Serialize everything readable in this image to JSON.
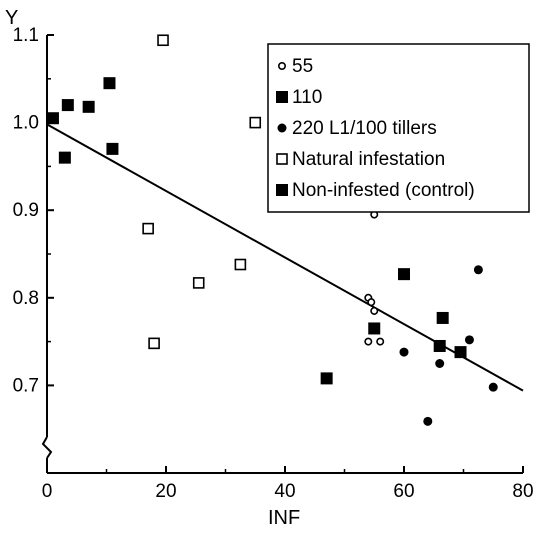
{
  "chart_data": {
    "type": "scatter",
    "xlabel": "INF",
    "ylabel": "Y",
    "xlim": [
      0,
      80
    ],
    "ylim": [
      0.6,
      1.1
    ],
    "xticks": [
      "0",
      "20",
      "40",
      "60",
      "80"
    ],
    "yticks": [
      "0.7",
      "0.8",
      "0.9",
      "1.0",
      "1.1"
    ],
    "grid": false,
    "legend_position": "top-right",
    "legend": [
      {
        "label": "55",
        "marker": "open-circle"
      },
      {
        "label": "110",
        "marker": "filled-square"
      },
      {
        "label": "220 L1/100 tillers",
        "marker": "filled-circle"
      },
      {
        "label": "Natural infestation",
        "marker": "open-square"
      },
      {
        "label": "Non-infested (control)",
        "marker": "filled-square"
      }
    ],
    "series": [
      {
        "name": "55",
        "marker": "open-circle",
        "points": [
          [
            55,
            0.895
          ],
          [
            54,
            0.8
          ],
          [
            54.5,
            0.795
          ],
          [
            55,
            0.785
          ],
          [
            54,
            0.75
          ],
          [
            56,
            0.75
          ]
        ]
      },
      {
        "name": "110",
        "marker": "filled-square",
        "points": [
          [
            55,
            0.765
          ],
          [
            47,
            0.708
          ],
          [
            60,
            0.827
          ],
          [
            66,
            0.745
          ],
          [
            66.5,
            0.777
          ],
          [
            69.5,
            0.738
          ]
        ]
      },
      {
        "name": "220 L1/100 tillers",
        "marker": "filled-circle",
        "points": [
          [
            60,
            0.738
          ],
          [
            64,
            0.659
          ],
          [
            66,
            0.725
          ],
          [
            71,
            0.752
          ],
          [
            72.5,
            0.832
          ],
          [
            75,
            0.698
          ]
        ]
      },
      {
        "name": "Natural infestation",
        "marker": "open-square",
        "points": [
          [
            19.5,
            1.094
          ],
          [
            35,
            1.0
          ],
          [
            17,
            0.879
          ],
          [
            25.5,
            0.817
          ],
          [
            32.5,
            0.838
          ],
          [
            18,
            0.748
          ]
        ]
      },
      {
        "name": "Non-infested (control)",
        "marker": "filled-square",
        "points": [
          [
            1,
            1.005
          ],
          [
            3.5,
            1.02
          ],
          [
            7,
            1.018
          ],
          [
            10.5,
            1.045
          ],
          [
            3,
            0.96
          ],
          [
            11,
            0.97
          ]
        ]
      }
    ],
    "fit_line": {
      "x": [
        0,
        80
      ],
      "y": [
        0.998,
        0.694
      ]
    }
  }
}
